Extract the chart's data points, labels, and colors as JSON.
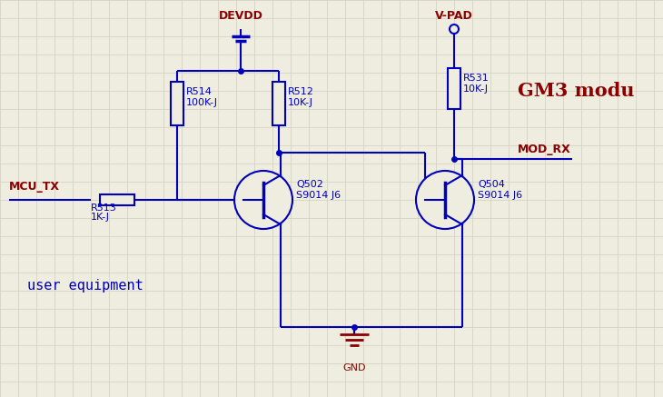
{
  "bg_color": "#eeede0",
  "grid_color": "#d0cfbe",
  "blue": "#0000bb",
  "dark_red": "#8b0000",
  "title_text": "GM3 modu",
  "label_mcu_tx": "MCU_TX",
  "label_user_equipment": "user equipment",
  "label_devdd": "DEVDD",
  "label_vpad": "V-PAD",
  "label_modrx": "MOD_RX",
  "label_gnd": "GND",
  "label_r513": "R513",
  "label_1kj": "1K-J",
  "label_r514": "R514",
  "label_100kj": "100K-J",
  "label_r512": "R512",
  "label_10kj_512": "10K-J",
  "label_r531": "R531",
  "label_10kj_531": "10K-J",
  "label_q502": "Q502",
  "label_s9014j6_q502": "S9014 J6",
  "label_q504": "Q504",
  "label_s9014j6_q504": "S9014 J6"
}
